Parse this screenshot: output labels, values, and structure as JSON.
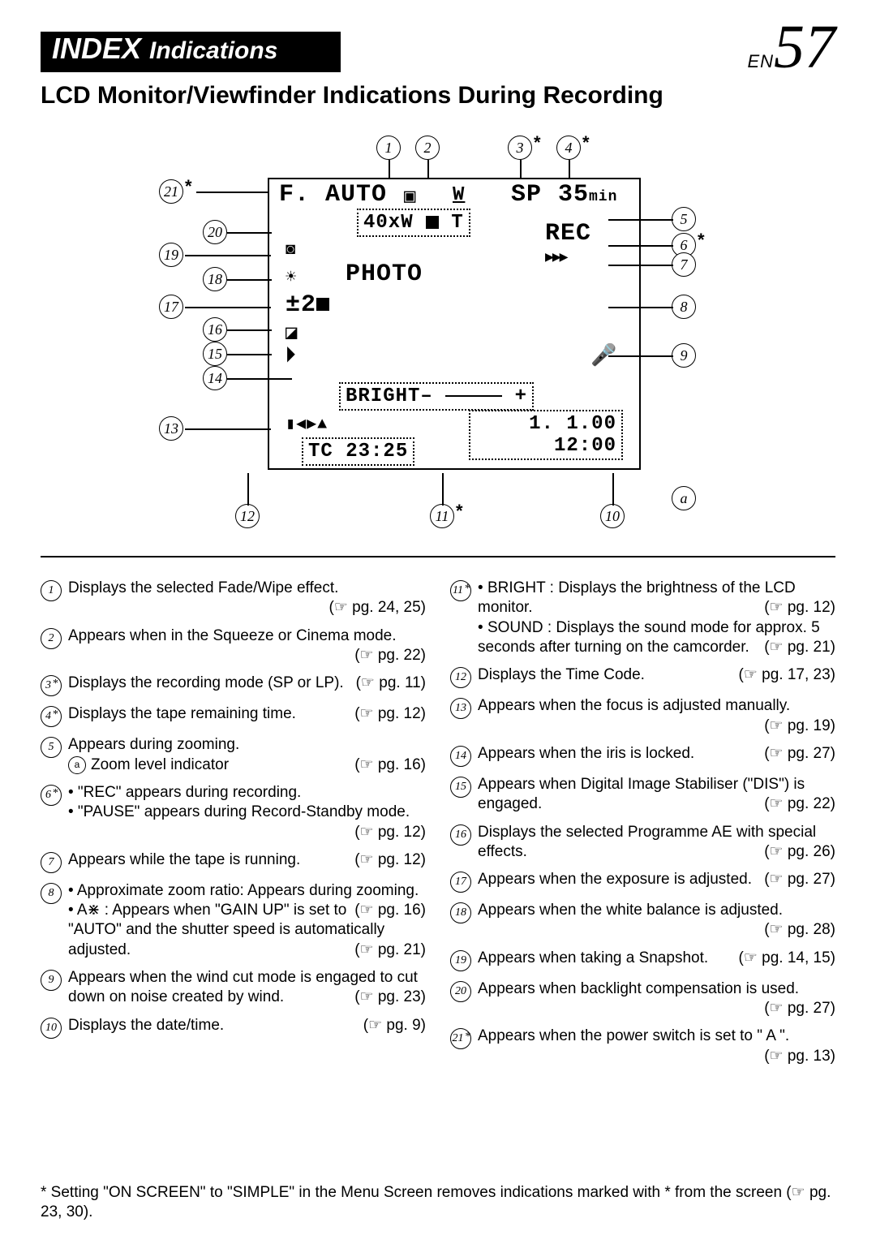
{
  "header": {
    "index_label": "INDEX",
    "indications_label": "Indications",
    "page_prefix": "EN",
    "page_number": "57",
    "subtitle": "LCD Monitor/Viewfinder Indications During Recording"
  },
  "osd": {
    "fauto": "F. AUTO",
    "squeeze": "▣",
    "cinema": "W",
    "sp": "SP",
    "time_remain": "35",
    "time_unit": "min",
    "zoom": "40xW",
    "rec": "REC",
    "photo": "PHOTO",
    "ev": "±2",
    "bright_label": "BRIGHT–",
    "bright_plus": "+",
    "audio": "1.   1.00",
    "clock": "12:00",
    "tc": "TC   23:25"
  },
  "left_items": [
    {
      "n": "1",
      "star": false,
      "text": "Displays the selected Fade/Wipe effect.",
      "ref": "pg. 24, 25"
    },
    {
      "n": "2",
      "star": false,
      "text": "Appears when in the Squeeze or Cinema mode.",
      "ref": "pg. 22"
    },
    {
      "n": "3",
      "star": true,
      "text": "Displays the recording mode (SP or LP).",
      "ref": "pg. 11"
    },
    {
      "n": "4",
      "star": true,
      "text": "Displays the tape remaining time.",
      "ref": "pg. 12"
    },
    {
      "n": "5",
      "star": false,
      "text": "Appears during zooming.",
      "sub": [
        {
          "marker": "a",
          "text": "Zoom level indicator",
          "ref": "pg. 16"
        }
      ]
    },
    {
      "n": "6",
      "star": true,
      "bullets": [
        {
          "text": "\"REC\" appears during recording."
        },
        {
          "text": "\"PAUSE\" appears during Record-Standby mode.",
          "ref": "pg. 12"
        }
      ]
    },
    {
      "n": "7",
      "star": false,
      "text": "Appears while the tape is running.",
      "ref": "pg. 12"
    },
    {
      "n": "8",
      "star": false,
      "bullets": [
        {
          "text": "Approximate zoom ratio: Appears during zooming.",
          "ref": "pg. 16"
        },
        {
          "text": "A⋇ : Appears when \"GAIN UP\" is set to \"AUTO\" and the shutter speed is automatically adjusted.",
          "ref": "pg. 21"
        }
      ]
    },
    {
      "n": "9",
      "star": false,
      "text": "Appears when the wind cut mode is engaged to cut down on noise created by wind.",
      "ref": "pg. 23"
    },
    {
      "n": "10",
      "star": false,
      "text": "Displays the date/time.",
      "ref": "pg. 9"
    }
  ],
  "right_items": [
    {
      "n": "11",
      "star": true,
      "bullets": [
        {
          "label": "BRIGHT :",
          "text": "Displays the brightness of the LCD monitor.",
          "ref": "pg. 12"
        },
        {
          "label": "SOUND :",
          "text": "Displays the sound mode for approx. 5 seconds after turning on the camcorder.",
          "ref": "pg. 21"
        }
      ]
    },
    {
      "n": "12",
      "star": false,
      "text": "Displays the Time Code.",
      "ref": "pg. 17, 23"
    },
    {
      "n": "13",
      "star": false,
      "text": "Appears when the focus is adjusted manually.",
      "ref": "pg. 19"
    },
    {
      "n": "14",
      "star": false,
      "text": "Appears when the iris is locked.",
      "ref": "pg. 27"
    },
    {
      "n": "15",
      "star": false,
      "text": "Appears when Digital Image Stabiliser (\"DIS\") is engaged.",
      "ref": "pg. 22"
    },
    {
      "n": "16",
      "star": false,
      "text": "Displays the selected Programme AE with special effects.",
      "ref": "pg. 26"
    },
    {
      "n": "17",
      "star": false,
      "text": "Appears when the exposure is adjusted.",
      "ref": "pg. 27"
    },
    {
      "n": "18",
      "star": false,
      "text": "Appears when the white balance is adjusted.",
      "ref": "pg. 28"
    },
    {
      "n": "19",
      "star": false,
      "text": "Appears when taking a Snapshot.",
      "ref": "pg. 14, 15"
    },
    {
      "n": "20",
      "star": false,
      "text": "Appears when backlight compensation is used.",
      "ref": "pg. 27"
    },
    {
      "n": "21",
      "star": true,
      "text": "Appears when the power switch is set to \" A \".",
      "ref": "pg. 13"
    }
  ],
  "footnote": "* Setting \"ON SCREEN\" to \"SIMPLE\" in the Menu Screen removes indications marked with * from the screen (☞ pg. 23, 30)."
}
